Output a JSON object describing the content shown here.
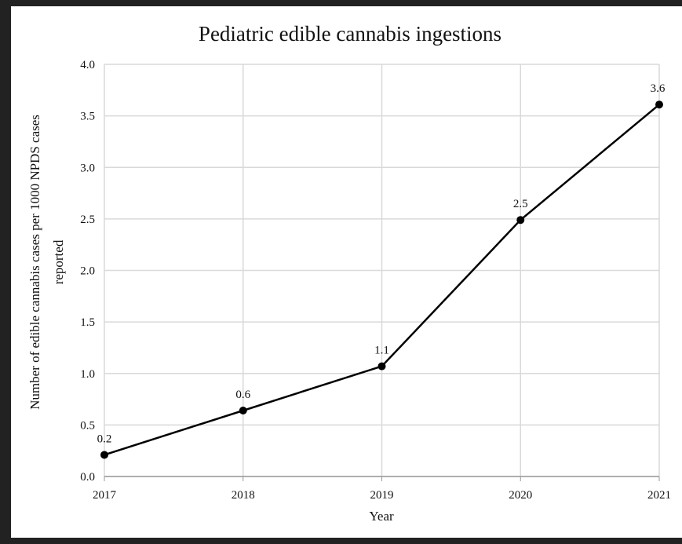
{
  "chart_data": {
    "type": "line",
    "title": "Pediatric edible cannabis ingestions",
    "xlabel": "Year",
    "ylabel_line1": "Number of  edible cannabis cases per 1000 NPDS cases",
    "ylabel_line2": "reported",
    "categories": [
      "2017",
      "2018",
      "2019",
      "2020",
      "2021"
    ],
    "values": [
      0.21,
      0.64,
      1.07,
      2.49,
      3.61
    ],
    "data_labels": [
      "0.2",
      "0.6",
      "1.1",
      "2.5",
      "3.6"
    ],
    "ylim": [
      0,
      4
    ],
    "yticks": [
      "0.0",
      "0.5",
      "1.0",
      "1.5",
      "2.0",
      "2.5",
      "3.0",
      "3.5",
      "4.0"
    ],
    "grid": true,
    "line_color": "#000000",
    "grid_color": "#d9d9d9"
  }
}
